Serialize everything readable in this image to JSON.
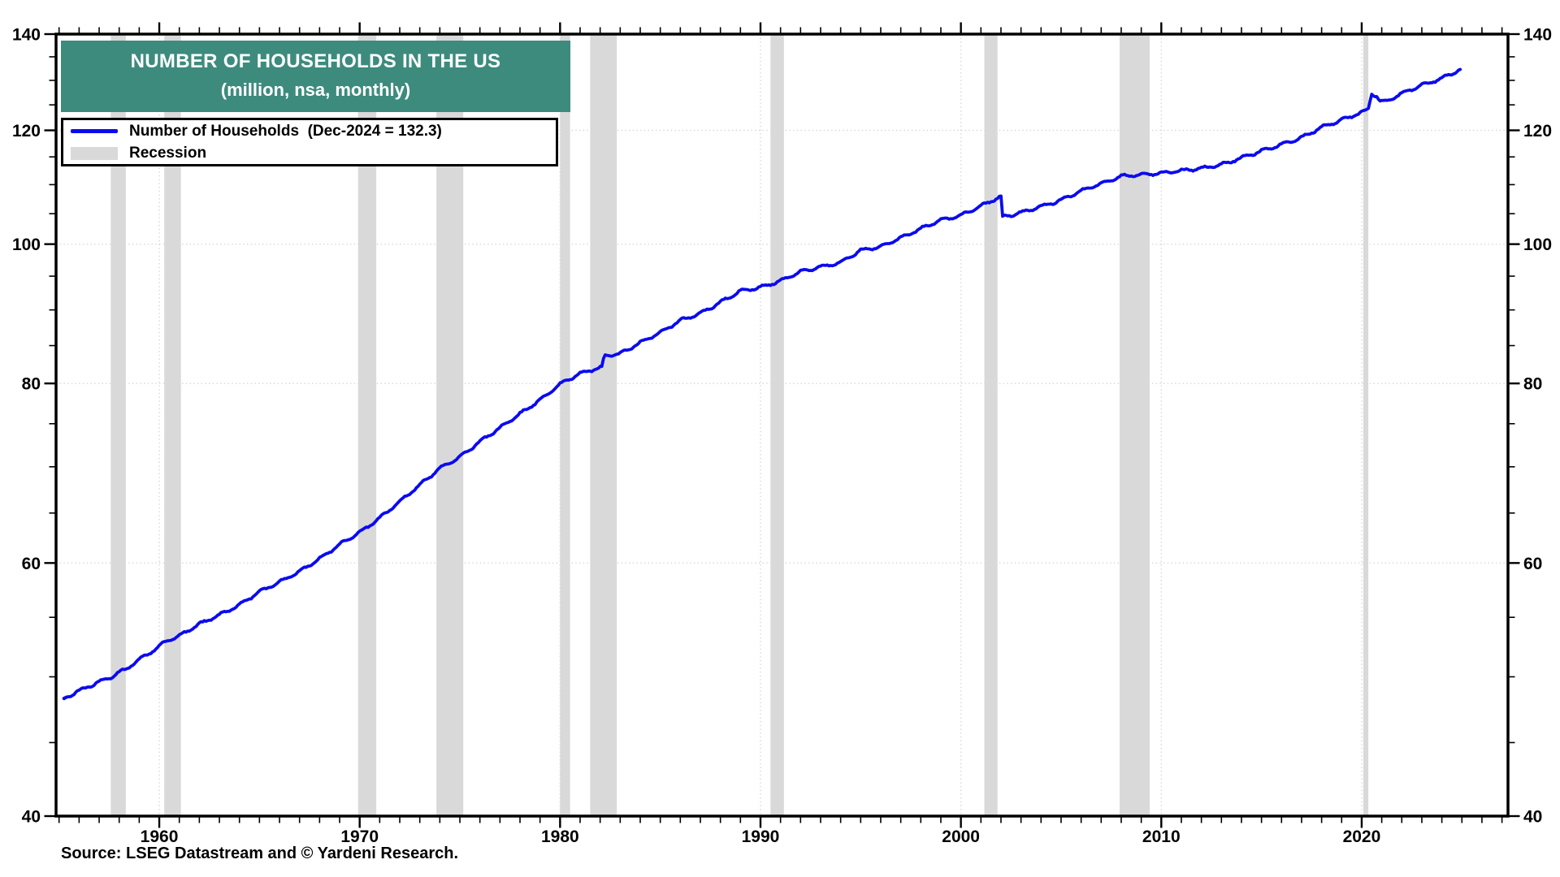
{
  "title": {
    "line1": "NUMBER OF HOUSEHOLDS IN THE US",
    "line2": "(million, nsa, monthly)"
  },
  "legend": {
    "households_label": "Number of Households  (Dec-2024 = 132.3)",
    "recession_label": "Recession"
  },
  "source": "Source: LSEG Datastream and © Yardeni Research.",
  "colors": {
    "line": "#0b0bee",
    "recession": "#d9d9d9",
    "title_bg": "#3d8b7d",
    "grid": "#d8d8d8",
    "axis": "#000000"
  },
  "chart_data": {
    "type": "line",
    "title": "NUMBER OF HOUSEHOLDS IN THE US",
    "units": "million, nsa, monthly",
    "legend_position": "top-left",
    "grid": "dotted-major",
    "x_axis": {
      "min": 1954.85,
      "max": 2027.3,
      "ticks": [
        1960,
        1970,
        1980,
        1990,
        2000,
        2010,
        2020
      ],
      "minor_step": 1
    },
    "y_axis": {
      "scale": "log",
      "min": 40,
      "max": 140,
      "ticks": [
        40,
        60,
        80,
        100,
        120,
        140
      ],
      "minor_step": 5
    },
    "series": [
      {
        "name": "Number of Households",
        "last_point_label": "Dec-2024 = 132.3",
        "anchors": [
          [
            1955.25,
            48.3
          ],
          [
            1956,
            48.9
          ],
          [
            1957,
            49.6
          ],
          [
            1957.6,
            50.0
          ],
          [
            1958.3,
            50.6
          ],
          [
            1959,
            51.4
          ],
          [
            1960,
            52.5
          ],
          [
            1960.3,
            52.9
          ],
          [
            1961,
            53.4
          ],
          [
            1962,
            54.4
          ],
          [
            1963,
            55.2
          ],
          [
            1964,
            56.1
          ],
          [
            1965,
            57.3
          ],
          [
            1966,
            58.2
          ],
          [
            1967,
            59.2
          ],
          [
            1968,
            60.4
          ],
          [
            1969,
            61.8
          ],
          [
            1970,
            63.0
          ],
          [
            1971,
            64.5
          ],
          [
            1972,
            66.2
          ],
          [
            1973,
            68.0
          ],
          [
            1974,
            69.8
          ],
          [
            1975,
            71.1
          ],
          [
            1976,
            72.9
          ],
          [
            1977,
            74.5
          ],
          [
            1978,
            76.2
          ],
          [
            1979,
            77.9
          ],
          [
            1980,
            79.9
          ],
          [
            1981,
            81.3
          ],
          [
            1982.083,
            82.1
          ],
          [
            1982.2,
            83.6
          ],
          [
            1983,
            83.9
          ],
          [
            1984,
            85.4
          ],
          [
            1985,
            86.8
          ],
          [
            1986,
            88.5
          ],
          [
            1987,
            89.5
          ],
          [
            1988,
            91.1
          ],
          [
            1989,
            92.8
          ],
          [
            1990,
            93.3
          ],
          [
            1991,
            94.3
          ],
          [
            1992,
            95.7
          ],
          [
            1993,
            96.4
          ],
          [
            1994,
            97.1
          ],
          [
            1995,
            99.0
          ],
          [
            1996,
            99.6
          ],
          [
            1997,
            101.0
          ],
          [
            1998,
            102.5
          ],
          [
            1999,
            103.9
          ],
          [
            2000,
            104.7
          ],
          [
            2001,
            106.3
          ],
          [
            2001.9,
            107.8
          ],
          [
            2002.0,
            107.9
          ],
          [
            2002.083,
            104.4
          ],
          [
            2003,
            105.2
          ],
          [
            2004,
            106.2
          ],
          [
            2005,
            107.3
          ],
          [
            2006,
            108.9
          ],
          [
            2007,
            110.2
          ],
          [
            2008,
            111.5
          ],
          [
            2009,
            111.8
          ],
          [
            2010,
            112.0
          ],
          [
            2011,
            112.5
          ],
          [
            2012,
            112.9
          ],
          [
            2013,
            113.6
          ],
          [
            2014,
            114.8
          ],
          [
            2015,
            116.1
          ],
          [
            2016,
            117.3
          ],
          [
            2017,
            118.6
          ],
          [
            2018,
            120.6
          ],
          [
            2019,
            122.0
          ],
          [
            2020.083,
            123.6
          ],
          [
            2020.33,
            124.2
          ],
          [
            2020.5,
            127.3
          ],
          [
            2020.75,
            126.8
          ],
          [
            2020.92,
            125.6
          ],
          [
            2021.25,
            125.7
          ],
          [
            2022,
            127.3
          ],
          [
            2023,
            129.0
          ],
          [
            2024,
            130.4
          ],
          [
            2024.917,
            132.3
          ]
        ]
      }
    ],
    "recessions": [
      [
        1957.58,
        1958.33
      ],
      [
        1960.25,
        1961.08
      ],
      [
        1969.92,
        1970.83
      ],
      [
        1973.83,
        1975.17
      ],
      [
        1980.0,
        1980.5
      ],
      [
        1981.5,
        1982.83
      ],
      [
        1990.5,
        1991.17
      ],
      [
        2001.17,
        2001.83
      ],
      [
        2007.92,
        2009.42
      ],
      [
        2020.08,
        2020.33
      ]
    ]
  }
}
